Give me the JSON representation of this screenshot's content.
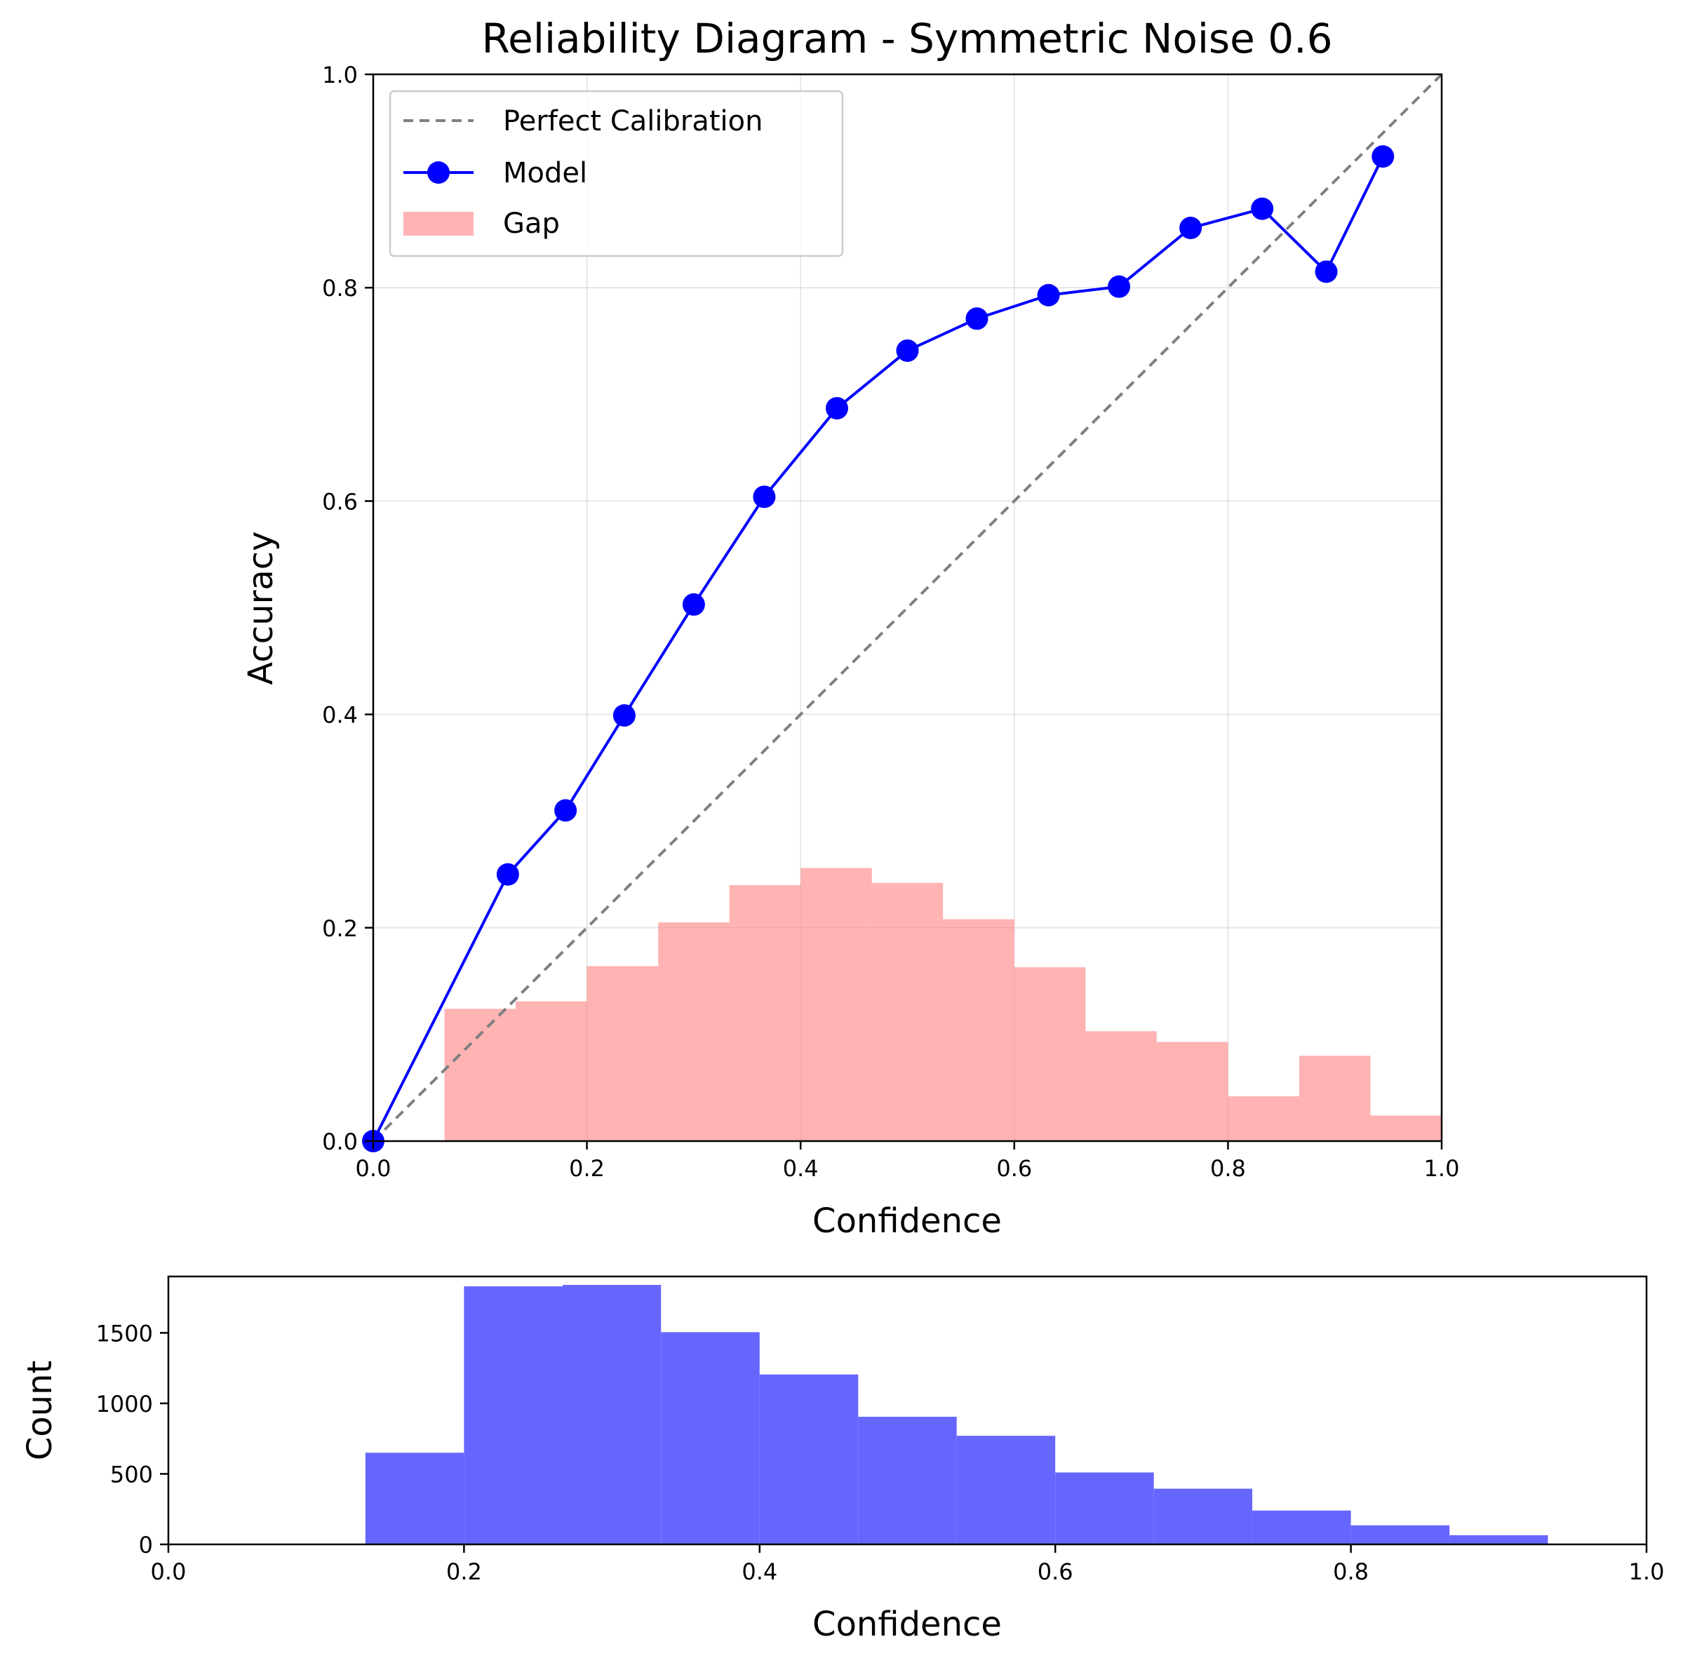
{
  "chart_data": [
    {
      "type": "line",
      "title": "Reliability Diagram - Symmetric Noise 0.6",
      "xlabel": "Confidence",
      "ylabel": "Accuracy",
      "xlim": [
        0.0,
        1.0
      ],
      "ylim": [
        0.0,
        1.0
      ],
      "x_ticks": [
        "0.0",
        "0.2",
        "0.4",
        "0.6",
        "0.8",
        "1.0"
      ],
      "y_ticks": [
        "0.0",
        "0.2",
        "0.4",
        "0.6",
        "0.8",
        "1.0"
      ],
      "grid": true,
      "legend": {
        "placement": "top-left",
        "entries": [
          "Perfect Calibration",
          "Model",
          "Gap"
        ]
      },
      "series": [
        {
          "name": "Perfect Calibration",
          "style": "dashed",
          "color": "#808080",
          "x": [
            0.0,
            1.0
          ],
          "y": [
            0.0,
            1.0
          ]
        },
        {
          "name": "Model",
          "style": "line-marker",
          "color": "#0000ff",
          "x": [
            0.0,
            0.126,
            0.18,
            0.235,
            0.3,
            0.366,
            0.434,
            0.5,
            0.565,
            0.632,
            0.698,
            0.765,
            0.832,
            0.892,
            0.945
          ],
          "y": [
            0.0,
            0.25,
            0.31,
            0.399,
            0.503,
            0.604,
            0.687,
            0.741,
            0.771,
            0.793,
            0.801,
            0.856,
            0.874,
            0.815,
            0.923
          ]
        },
        {
          "name": "Gap",
          "style": "bar",
          "color": "#ff8080",
          "bin_edges": [
            0.0667,
            0.1333,
            0.2,
            0.2667,
            0.3333,
            0.4,
            0.4667,
            0.5333,
            0.6,
            0.6667,
            0.7333,
            0.8,
            0.8667,
            0.9333,
            1.0
          ],
          "values": [
            0.124,
            0.131,
            0.164,
            0.205,
            0.24,
            0.256,
            0.242,
            0.208,
            0.163,
            0.103,
            0.093,
            0.042,
            0.08,
            0.024
          ]
        }
      ]
    },
    {
      "type": "bar",
      "xlabel": "Confidence",
      "ylabel": "Count",
      "xlim": [
        0.0,
        1.0
      ],
      "ylim": [
        0,
        1900
      ],
      "x_ticks": [
        "0.0",
        "0.2",
        "0.4",
        "0.6",
        "0.8",
        "1.0"
      ],
      "y_ticks": [
        "0",
        "500",
        "1000",
        "1500"
      ],
      "y_tick_values": [
        0,
        500,
        1000,
        1500
      ],
      "grid": false,
      "color": "#6666ff",
      "bin_edges": [
        0.1333,
        0.2,
        0.2667,
        0.3333,
        0.4,
        0.4667,
        0.5333,
        0.6,
        0.6667,
        0.7333,
        0.8,
        0.8667,
        0.9333
      ],
      "values": [
        650,
        1830,
        1840,
        1505,
        1205,
        905,
        770,
        510,
        395,
        240,
        135,
        65
      ]
    }
  ]
}
